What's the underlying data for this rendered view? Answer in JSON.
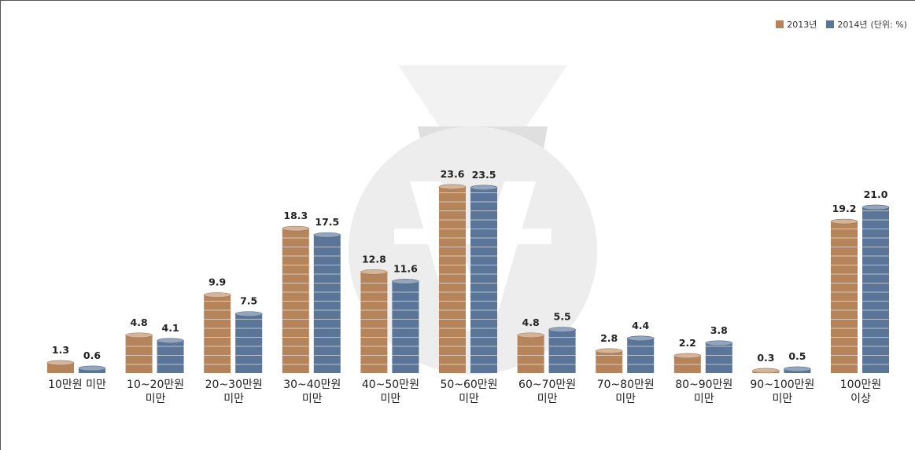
{
  "chart_data": {
    "type": "bar",
    "unit_note": "(단위: %)",
    "categories": [
      "10만원 미만",
      "10~20만원\n미만",
      "20~30만원\n미만",
      "30~40만원\n미만",
      "40~50만원\n미만",
      "50~60만원\n미만",
      "60~70만원\n미만",
      "70~80만원\n미만",
      "80~90만원\n미만",
      "90~100만원\n미만",
      "100만원\n이상"
    ],
    "series": [
      {
        "name": "2013년",
        "color": "#b5845b",
        "values": [
          1.3,
          4.8,
          9.9,
          18.3,
          12.8,
          23.6,
          4.8,
          2.8,
          2.2,
          0.3,
          19.2
        ],
        "value_labels": [
          "1.3",
          "4.8",
          "9.9",
          "18.3",
          "12.8",
          "23.6",
          "4.8",
          "2.8",
          "2.2",
          "0.3",
          "19.2"
        ]
      },
      {
        "name": "2014년",
        "color": "#5b7598",
        "values": [
          0.6,
          4.1,
          7.5,
          17.5,
          11.6,
          23.5,
          5.5,
          4.4,
          3.8,
          0.5,
          21
        ],
        "value_labels": [
          "0.6",
          "4.1",
          "7.5",
          "17.5",
          "11.6",
          "23.5",
          "5.5",
          "4.4",
          "3.8",
          "0.5",
          "21.0"
        ]
      }
    ]
  }
}
